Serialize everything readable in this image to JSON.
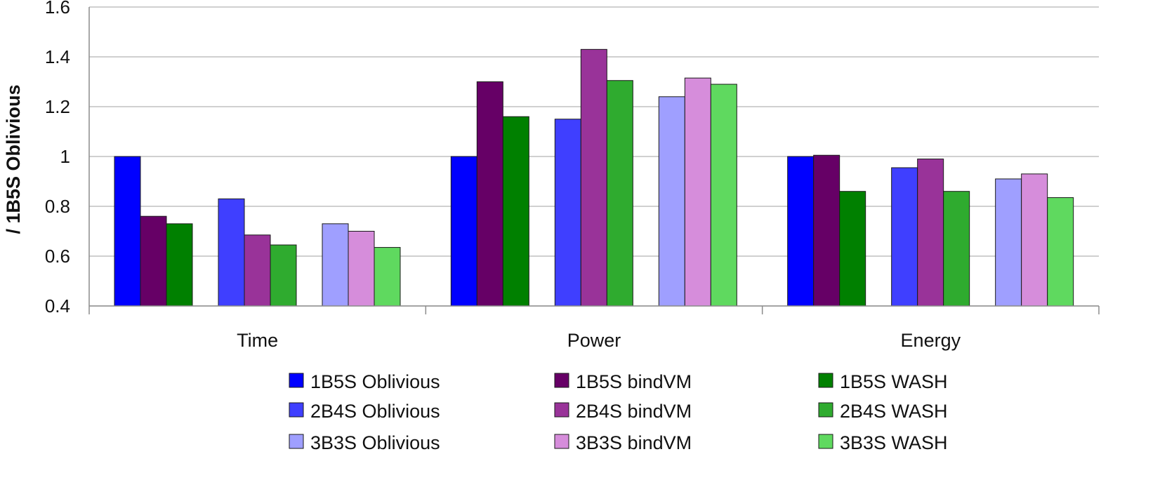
{
  "chart_data": {
    "type": "bar",
    "title": "",
    "xlabel": "",
    "ylabel": "/ 1B5S Oblivious",
    "ylim": [
      0.4,
      1.6
    ],
    "yticks": [
      "0.4",
      "0.6",
      "0.8",
      "1",
      "1.2",
      "1.4",
      "1.6"
    ],
    "grid": true,
    "legend_position": "bottom",
    "categories": [
      "Time",
      "Power",
      "Energy"
    ],
    "groups": [
      "1B5S",
      "2B4S",
      "3B3S"
    ],
    "series": [
      {
        "name": "1B5S Oblivious",
        "color": "#0000ff",
        "values": [
          1.0,
          1.0,
          1.0
        ]
      },
      {
        "name": "1B5S bindVM",
        "color": "#660066",
        "values": [
          0.76,
          1.3,
          1.005
        ]
      },
      {
        "name": "1B5S WASH",
        "color": "#008000",
        "values": [
          0.73,
          1.16,
          0.86
        ]
      },
      {
        "name": "2B4S Oblivious",
        "color": "#3f3fff",
        "values": [
          0.83,
          1.15,
          0.955
        ]
      },
      {
        "name": "2B4S bindVM",
        "color": "#993399",
        "values": [
          0.685,
          1.43,
          0.99
        ]
      },
      {
        "name": "2B4S WASH",
        "color": "#2fab2f",
        "values": [
          0.645,
          1.305,
          0.86
        ]
      },
      {
        "name": "3B3S Oblivious",
        "color": "#9f9fff",
        "values": [
          0.73,
          1.24,
          0.91
        ]
      },
      {
        "name": "3B3S bindVM",
        "color": "#d68ddb",
        "values": [
          0.7,
          1.315,
          0.93
        ]
      },
      {
        "name": "3B3S WASH",
        "color": "#5fd95f",
        "values": [
          0.635,
          1.29,
          0.835
        ]
      }
    ]
  }
}
